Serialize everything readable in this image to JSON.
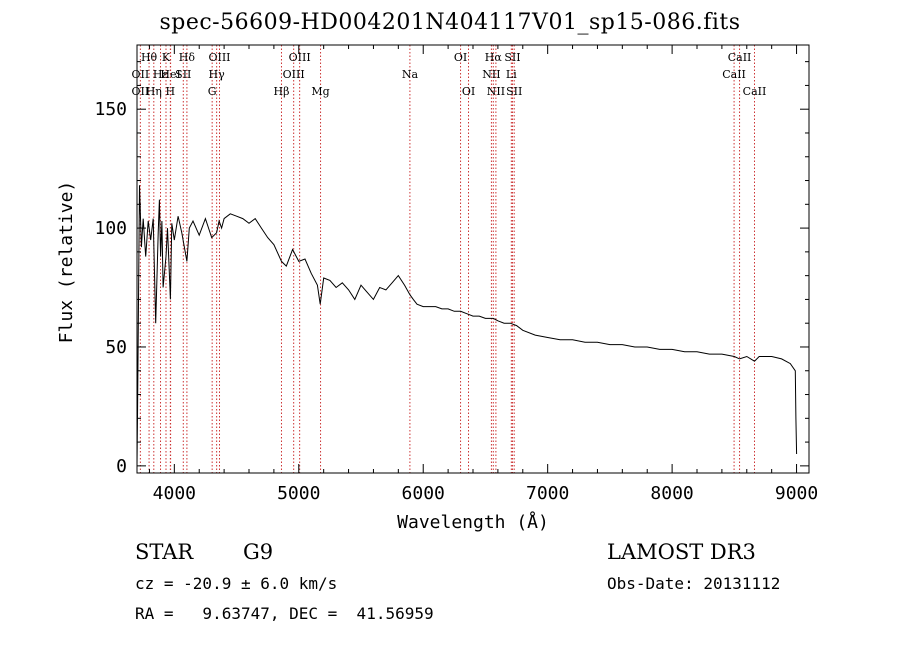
{
  "title": "spec-56609-HD004201N404117V01_sp15-086.fits",
  "info": {
    "object_class": "STAR",
    "subclass": "G9",
    "survey": "LAMOST DR3",
    "cz": "cz = -20.9 ± 6.0 km/s",
    "obs_date": "Obs-Date: 20131112",
    "coords": "RA =   9.63747, DEC =  41.56959"
  },
  "colors": {
    "spectrum": "#000000",
    "line_marker": "#cc3333",
    "axis": "#000000"
  },
  "chart_data": {
    "type": "line",
    "xlabel": "Wavelength (Å)",
    "ylabel": "Flux (relative)",
    "xlim": [
      3700,
      9100
    ],
    "ylim": [
      -3,
      177
    ],
    "xticks": [
      4000,
      5000,
      6000,
      7000,
      8000,
      9000
    ],
    "yticks": [
      0,
      50,
      100,
      150
    ],
    "series": [
      {
        "x": [
          3700,
          3705,
          3720,
          3735,
          3750,
          3770,
          3790,
          3810,
          3830,
          3850,
          3870,
          3880,
          3890,
          3900,
          3910,
          3933,
          3945,
          3968,
          3980,
          4000,
          4030,
          4060,
          4101,
          4120,
          4150,
          4200,
          4250,
          4300,
          4340,
          4360,
          4380,
          4400,
          4450,
          4500,
          4550,
          4600,
          4650,
          4700,
          4750,
          4800,
          4861,
          4900,
          4950,
          5000,
          5050,
          5100,
          5150,
          5172,
          5200,
          5250,
          5300,
          5350,
          5400,
          5450,
          5500,
          5550,
          5600,
          5650,
          5700,
          5750,
          5800,
          5850,
          5893,
          5920,
          5950,
          6000,
          6050,
          6100,
          6150,
          6200,
          6250,
          6300,
          6350,
          6400,
          6450,
          6500,
          6563,
          6600,
          6650,
          6700,
          6750,
          6800,
          6900,
          7000,
          7100,
          7200,
          7300,
          7400,
          7500,
          7600,
          7700,
          7800,
          7900,
          8000,
          8100,
          8200,
          8300,
          8400,
          8500,
          8542,
          8600,
          8662,
          8700,
          8800,
          8880,
          8950,
          8990,
          8995,
          9000
        ],
        "y": [
          0,
          25,
          118,
          92,
          104,
          88,
          103,
          95,
          104,
          60,
          98,
          112,
          88,
          103,
          75,
          88,
          100,
          70,
          102,
          95,
          105,
          98,
          86,
          100,
          103,
          97,
          104,
          96,
          98,
          103,
          100,
          104,
          106,
          105,
          104,
          102,
          104,
          100,
          96,
          93,
          86,
          84,
          91,
          86,
          87,
          81,
          76,
          68,
          79,
          78,
          75,
          77,
          74,
          70,
          76,
          73,
          70,
          75,
          74,
          77,
          80,
          76,
          72,
          70,
          68,
          67,
          67,
          67,
          66,
          66,
          65,
          65,
          64,
          63,
          63,
          62,
          62,
          61,
          60,
          60,
          59,
          57,
          55,
          54,
          53,
          53,
          52,
          52,
          51,
          51,
          50,
          50,
          49,
          49,
          48,
          48,
          47,
          47,
          46,
          45,
          46,
          44,
          46,
          46,
          45,
          43,
          40,
          20,
          5
        ]
      }
    ],
    "line_markers": [
      {
        "label": "OII",
        "x": 3727,
        "row": 2
      },
      {
        "label": "OII",
        "x": 3727,
        "row": 3
      },
      {
        "label": "Hθ",
        "x": 3797,
        "row": 1
      },
      {
        "label": "Hη",
        "x": 3835,
        "row": 3
      },
      {
        "label": "Hε",
        "x": 3889,
        "row": 2
      },
      {
        "label": "K",
        "x": 3933,
        "row": 1
      },
      {
        "label": "HeI",
        "x": 3970,
        "row": 2
      },
      {
        "label": "H",
        "x": 3968,
        "row": 3
      },
      {
        "label": "Hδ",
        "x": 4101,
        "row": 1
      },
      {
        "label": "SII",
        "x": 4072,
        "row": 2
      },
      {
        "label": "OIII",
        "x": 4363,
        "row": 1
      },
      {
        "label": "Hγ",
        "x": 4340,
        "row": 2
      },
      {
        "label": "G",
        "x": 4304,
        "row": 3
      },
      {
        "label": "Hβ",
        "x": 4861,
        "row": 3
      },
      {
        "label": "OIII",
        "x": 5007,
        "row": 1
      },
      {
        "label": "OIII",
        "x": 4959,
        "row": 2
      },
      {
        "label": "Mg",
        "x": 5175,
        "row": 3
      },
      {
        "label": "Na",
        "x": 5893,
        "row": 2
      },
      {
        "label": "OI",
        "x": 6300,
        "row": 1
      },
      {
        "label": "OI",
        "x": 6364,
        "row": 3
      },
      {
        "label": "Hα",
        "x": 6563,
        "row": 1
      },
      {
        "label": "NII",
        "x": 6548,
        "row": 2
      },
      {
        "label": "NII",
        "x": 6584,
        "row": 3
      },
      {
        "label": "SII",
        "x": 6717,
        "row": 1
      },
      {
        "label": "Li",
        "x": 6708,
        "row": 2
      },
      {
        "label": "SII",
        "x": 6731,
        "row": 3
      },
      {
        "label": "CaII",
        "x": 8542,
        "row": 1
      },
      {
        "label": "CaII",
        "x": 8498,
        "row": 2
      },
      {
        "label": "CaII",
        "x": 8662,
        "row": 3
      }
    ]
  }
}
